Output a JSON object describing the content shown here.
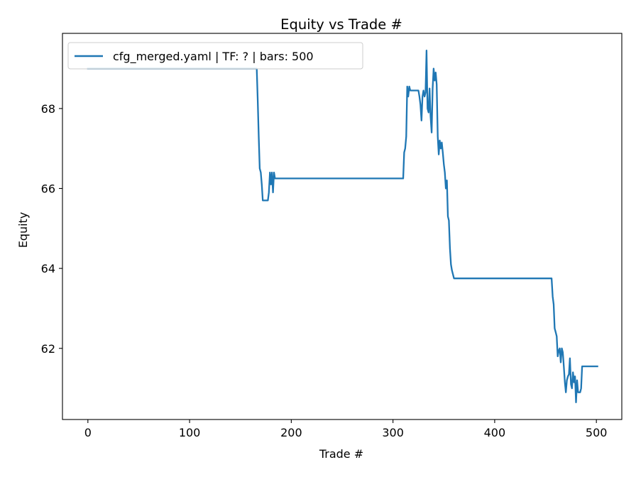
{
  "chart_data": {
    "type": "line",
    "title": "Equity vs Trade #",
    "xlabel": "Trade #",
    "ylabel": "Equity",
    "xlim": [
      -25,
      525
    ],
    "ylim": [
      60.22,
      69.88
    ],
    "xticks": [
      0,
      100,
      200,
      300,
      400,
      500
    ],
    "yticks": [
      62,
      64,
      66,
      68
    ],
    "grid": false,
    "legend_position": "top-left",
    "line_color": "#1f77b4",
    "series": [
      {
        "name": "cfg_merged.yaml | TF: ? | bars: 500",
        "x": [
          0,
          166,
          167,
          168,
          169,
          170,
          171,
          172,
          173,
          174,
          175,
          176,
          177,
          178,
          179,
          180,
          181,
          182,
          183,
          184,
          185,
          186,
          190,
          250,
          300,
          310,
          311,
          312,
          313,
          314,
          315,
          316,
          317,
          318,
          320,
          325,
          326,
          327,
          328,
          329,
          330,
          331,
          332,
          333,
          334,
          335,
          336,
          337,
          338,
          339,
          340,
          341,
          342,
          343,
          344,
          345,
          346,
          347,
          348,
          349,
          350,
          351,
          352,
          353,
          354,
          355,
          356,
          357,
          358,
          360,
          362,
          400,
          440,
          456,
          457,
          458,
          459,
          460,
          461,
          462,
          463,
          464,
          465,
          466,
          467,
          468,
          469,
          470,
          471,
          472,
          473,
          474,
          475,
          476,
          477,
          478,
          479,
          480,
          481,
          482,
          483,
          484,
          485,
          486,
          490,
          495,
          501
        ],
        "y": [
          69.0,
          69.0,
          68.2,
          67.3,
          66.5,
          66.4,
          66.1,
          65.7,
          65.7,
          65.7,
          65.7,
          65.7,
          65.7,
          65.9,
          66.4,
          66.1,
          66.4,
          65.9,
          66.4,
          66.25,
          66.25,
          66.25,
          66.25,
          66.25,
          66.25,
          66.25,
          66.9,
          67.0,
          67.3,
          68.55,
          68.3,
          68.55,
          68.45,
          68.45,
          68.45,
          68.45,
          68.3,
          68.1,
          67.7,
          68.3,
          68.45,
          68.3,
          68.4,
          69.45,
          68.0,
          67.9,
          68.5,
          67.8,
          67.4,
          68.5,
          69.0,
          68.7,
          68.9,
          68.6,
          67.3,
          66.85,
          67.2,
          67.0,
          67.15,
          66.9,
          66.6,
          66.4,
          66.0,
          66.2,
          65.3,
          65.2,
          64.5,
          64.1,
          63.95,
          63.75,
          63.75,
          63.75,
          63.75,
          63.75,
          63.3,
          63.1,
          62.5,
          62.4,
          62.3,
          61.8,
          61.95,
          62.0,
          61.65,
          62.0,
          61.9,
          61.55,
          61.15,
          60.9,
          61.2,
          61.3,
          61.35,
          61.75,
          61.1,
          61.0,
          61.4,
          61.15,
          61.3,
          60.65,
          61.2,
          60.9,
          60.9,
          60.9,
          61.0,
          61.55,
          61.55,
          61.55,
          61.55
        ]
      }
    ]
  }
}
